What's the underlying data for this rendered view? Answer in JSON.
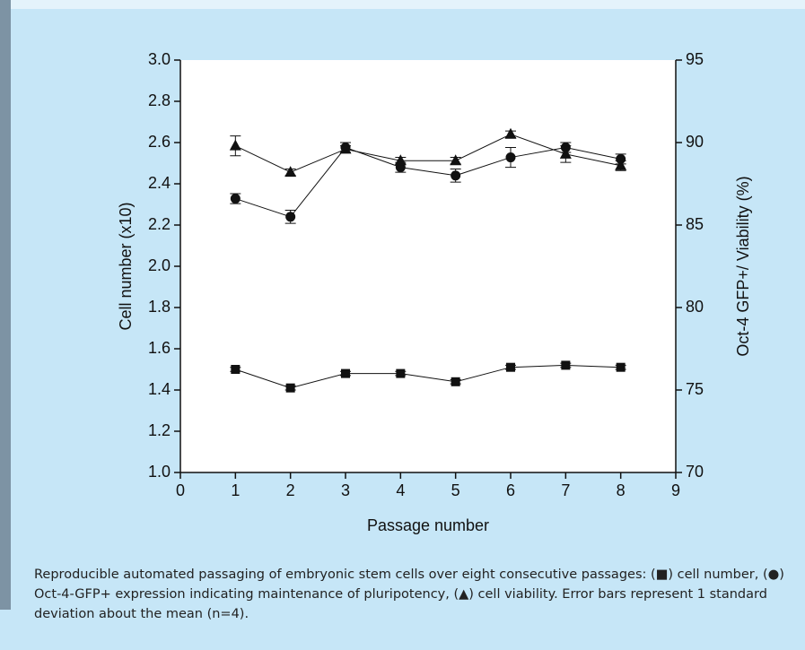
{
  "chart_data": {
    "type": "line",
    "x_label": "Passage number",
    "y_label": "Cell number (x10)",
    "y2_label": "Oct-4 GFP+/ Viability (%)",
    "caption": "Reproducible automated passaging of embryonic stem cells over eight consecutive passages: (■) cell number, (●) Oct-4-GFP+ expression indicating maintenance of pluripotency, (▲) cell viability. Error bars represent 1 standard deviation about the mean (n=4).",
    "x": [
      1,
      2,
      3,
      4,
      5,
      6,
      7,
      8
    ],
    "xlim": [
      0,
      9
    ],
    "xticks": [
      0,
      1,
      2,
      3,
      4,
      5,
      6,
      7,
      8,
      9
    ],
    "ylim": [
      1,
      3
    ],
    "yticks": [
      {
        "value": 1,
        "label": "1.0"
      },
      {
        "value": 1.2,
        "label": "1.2"
      },
      {
        "value": 1.4,
        "label": "1.4"
      },
      {
        "value": 1.6,
        "label": "1.6"
      },
      {
        "value": 1.8,
        "label": "1.8"
      },
      {
        "value": 2,
        "label": "2.0"
      },
      {
        "value": 2.2,
        "label": "2.2"
      },
      {
        "value": 2.4,
        "label": "2.4"
      },
      {
        "value": 2.6,
        "label": "2.6"
      },
      {
        "value": 2.8,
        "label": "2.8"
      },
      {
        "value": 3,
        "label": "3.0"
      }
    ],
    "y2lim": [
      70,
      95
    ],
    "y2ticks": [
      70,
      75,
      80,
      85,
      90,
      95
    ],
    "series": [
      {
        "marker": "square",
        "color": "#111111",
        "values": [
          1.5,
          1.41,
          1.48,
          1.48,
          1.44,
          1.51,
          1.52,
          1.51
        ],
        "errors": [
          0.01,
          0.01,
          0.01,
          0.01,
          0.01,
          0.01,
          0.01,
          0.01
        ]
      },
      {
        "marker": "circle",
        "color": "#111111",
        "axis": "y2",
        "values": [
          86.6,
          85.5,
          89.7,
          88.5,
          88.0,
          89.1,
          89.7,
          89.0
        ],
        "errors": [
          0.3,
          0.4,
          0.3,
          0.3,
          0.4,
          0.6,
          0.3,
          0.3
        ]
      },
      {
        "marker": "triangle",
        "color": "#111111",
        "axis": "y2",
        "values": [
          89.8,
          88.2,
          89.6,
          88.9,
          88.9,
          90.5,
          89.3,
          88.6
        ],
        "errors": [
          0.6,
          0.2,
          0.2,
          0.2,
          0.2,
          0.2,
          0.5,
          0.3
        ]
      }
    ]
  }
}
